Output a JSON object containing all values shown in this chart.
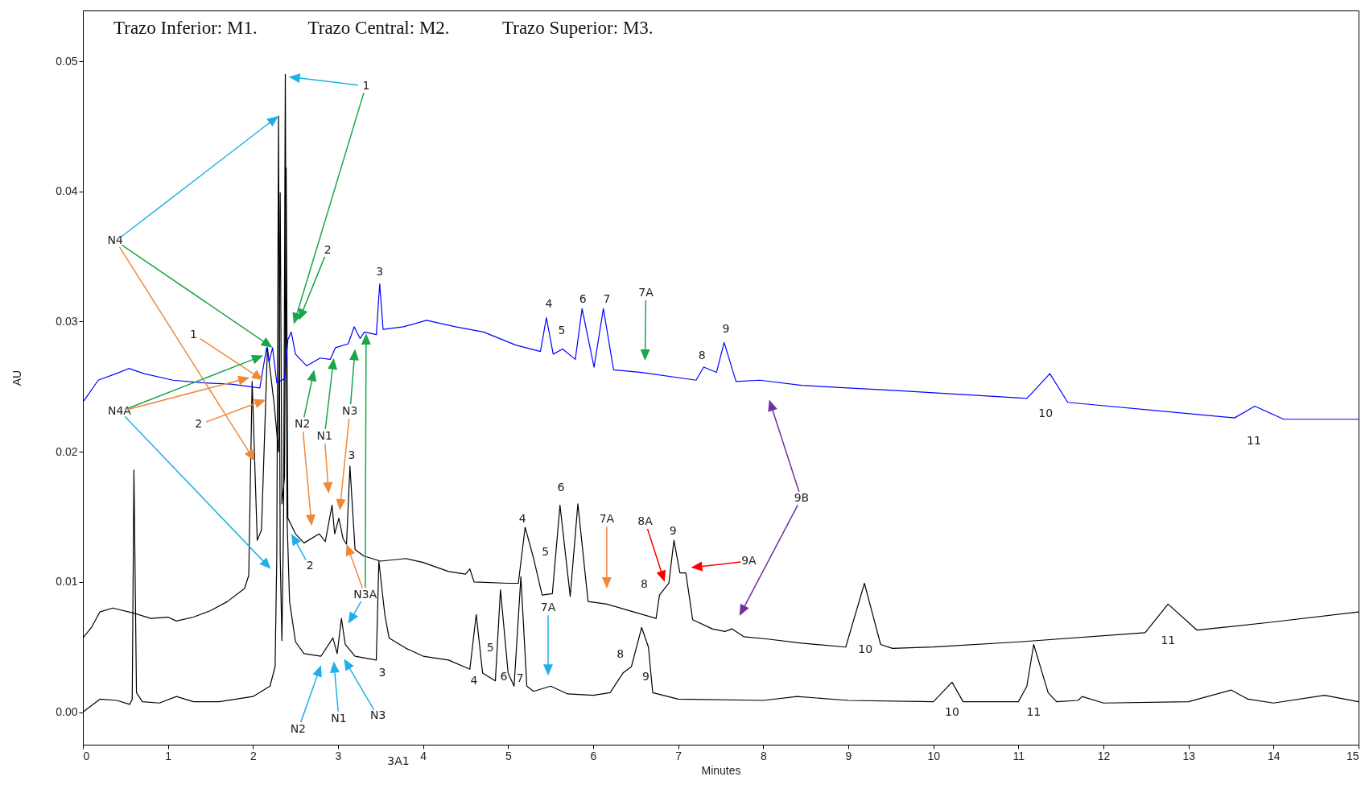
{
  "chart_data": {
    "type": "line",
    "xlabel": "Minutes",
    "ylabel": "AU",
    "xlim": [
      0,
      15
    ],
    "ylim": [
      -0.0025,
      0.0539
    ],
    "xticks": [
      0,
      1,
      2,
      3,
      4,
      5,
      6,
      7,
      8,
      9,
      10,
      11,
      12,
      13,
      14,
      15
    ],
    "yticks": [
      {
        "value": 0,
        "label": "0.00"
      },
      {
        "value": 0.01,
        "label": "0.01"
      },
      {
        "value": 0.02,
        "label": "0.02"
      },
      {
        "value": 0.03,
        "label": "0.03"
      },
      {
        "value": 0.04,
        "label": "0.04"
      },
      {
        "value": 0.05,
        "label": "0.05"
      }
    ],
    "grid": false,
    "series": [
      {
        "color": "#000000",
        "x": [
          0,
          0.1,
          0.2,
          0.4,
          0.55,
          0.58,
          0.6,
          0.63,
          0.7,
          0.9,
          1.1,
          1.3,
          1.6,
          1.8,
          2.0,
          2.2,
          2.26,
          2.28,
          2.3,
          2.32,
          2.34,
          2.36,
          2.38,
          2.4,
          2.43,
          2.5,
          2.6,
          2.8,
          2.94,
          2.99,
          3.04,
          3.085,
          3.2,
          3.45,
          3.48,
          3.55,
          3.6,
          3.8,
          4.0,
          4.3,
          4.55,
          4.625,
          4.7,
          4.85,
          4.91,
          5.0,
          5.07,
          5.15,
          5.22,
          5.3,
          5.5,
          5.7,
          6.0,
          6.2,
          6.35,
          6.45,
          6.57,
          6.65,
          6.7,
          7.0,
          8.0,
          8.4,
          9.0,
          10.0,
          10.22,
          10.35,
          11.0,
          11.1,
          11.18,
          11.35,
          11.45,
          11.7,
          11.75,
          12.0,
          13.0,
          13.5,
          13.7,
          14.0,
          14.6,
          15.0
        ],
        "values": [
          0.0,
          0.0005,
          0.001,
          0.0009,
          0.0006,
          0.001,
          0.0186,
          0.0015,
          0.0008,
          0.0007,
          0.0012,
          0.0008,
          0.0008,
          0.001,
          0.0012,
          0.002,
          0.0035,
          0.012,
          0.0458,
          0.012,
          0.0055,
          0.015,
          0.049,
          0.015,
          0.0085,
          0.0054,
          0.0045,
          0.0043,
          0.0057,
          0.0045,
          0.0072,
          0.0052,
          0.0043,
          0.004,
          0.0116,
          0.0075,
          0.0057,
          0.0049,
          0.0043,
          0.004,
          0.0033,
          0.0075,
          0.003,
          0.0024,
          0.0094,
          0.003,
          0.002,
          0.0104,
          0.002,
          0.0016,
          0.002,
          0.0014,
          0.0013,
          0.0015,
          0.003,
          0.0035,
          0.0065,
          0.005,
          0.0015,
          0.001,
          0.0009,
          0.0012,
          0.0009,
          0.0008,
          0.0023,
          0.0008,
          0.0008,
          0.002,
          0.0052,
          0.0015,
          0.0008,
          0.0009,
          0.0012,
          0.0007,
          0.0008,
          0.0017,
          0.001,
          0.0007,
          0.0013,
          0.0008
        ]
      },
      {
        "color": "#000000",
        "x": [
          0,
          0.1,
          0.2,
          0.35,
          0.6,
          0.8,
          1.0,
          1.1,
          1.3,
          1.5,
          1.7,
          1.9,
          1.95,
          1.99,
          2.05,
          2.1,
          2.17,
          2.25,
          2.3,
          2.32,
          2.34,
          2.37,
          2.39,
          2.41,
          2.5,
          2.6,
          2.78,
          2.85,
          2.93,
          2.96,
          3.01,
          3.06,
          3.1,
          3.14,
          3.2,
          3.3,
          3.5,
          3.8,
          4.0,
          4.3,
          4.5,
          4.55,
          4.6,
          5.0,
          5.12,
          5.2,
          5.3,
          5.4,
          5.52,
          5.61,
          5.73,
          5.82,
          5.94,
          6.16,
          6.42,
          6.74,
          6.78,
          6.89,
          6.95,
          7.02,
          7.09,
          7.17,
          7.4,
          7.55,
          7.63,
          7.77,
          8.07,
          8.45,
          8.97,
          9.19,
          9.38,
          9.52,
          10.0,
          11.01,
          12.49,
          12.76,
          13.1,
          13.96,
          15.0
        ],
        "values": [
          0.0057,
          0.0065,
          0.0077,
          0.008,
          0.0076,
          0.0072,
          0.0073,
          0.007,
          0.0073,
          0.0078,
          0.0085,
          0.0095,
          0.0105,
          0.0254,
          0.0132,
          0.014,
          0.028,
          0.0236,
          0.02,
          0.0399,
          0.016,
          0.018,
          0.0418,
          0.0149,
          0.0137,
          0.013,
          0.0137,
          0.0131,
          0.0159,
          0.0137,
          0.0149,
          0.0133,
          0.0129,
          0.0189,
          0.0125,
          0.012,
          0.0116,
          0.0118,
          0.0115,
          0.0108,
          0.0106,
          0.011,
          0.01,
          0.0099,
          0.0099,
          0.0142,
          0.0118,
          0.009,
          0.0091,
          0.0159,
          0.0089,
          0.016,
          0.0085,
          0.0083,
          0.0078,
          0.0072,
          0.009,
          0.0099,
          0.0132,
          0.0107,
          0.0107,
          0.0071,
          0.0064,
          0.0062,
          0.0064,
          0.0058,
          0.0056,
          0.0053,
          0.005,
          0.0099,
          0.0052,
          0.0049,
          0.005,
          0.0054,
          0.0061,
          0.0083,
          0.0063,
          0.0069,
          0.0077
        ]
      },
      {
        "color": "#0000ff",
        "x": [
          0.01,
          0.18,
          0.39,
          0.54,
          0.72,
          1.06,
          1.4,
          1.74,
          2.08,
          2.16,
          2.19,
          2.23,
          2.28,
          2.37,
          2.41,
          2.45,
          2.5,
          2.63,
          2.79,
          2.91,
          2.97,
          3.12,
          3.19,
          3.26,
          3.31,
          3.45,
          3.49,
          3.53,
          3.77,
          4.04,
          4.38,
          4.71,
          5.09,
          5.38,
          5.45,
          5.53,
          5.64,
          5.79,
          5.87,
          6.01,
          6.12,
          6.24,
          6.57,
          7.21,
          7.3,
          7.45,
          7.54,
          7.68,
          7.96,
          8.45,
          9.57,
          11.1,
          11.37,
          11.58,
          13.54,
          13.78,
          14.12,
          15.0
        ],
        "values": [
          0.0239,
          0.0255,
          0.026,
          0.0264,
          0.026,
          0.0255,
          0.0253,
          0.0252,
          0.0249,
          0.028,
          0.0269,
          0.028,
          0.0253,
          0.0256,
          0.0286,
          0.0292,
          0.0275,
          0.0266,
          0.0272,
          0.0271,
          0.028,
          0.0283,
          0.0296,
          0.0287,
          0.0292,
          0.029,
          0.0329,
          0.0294,
          0.0296,
          0.0301,
          0.0296,
          0.0292,
          0.0282,
          0.0277,
          0.0303,
          0.0275,
          0.0279,
          0.0271,
          0.031,
          0.0265,
          0.031,
          0.0263,
          0.0261,
          0.0255,
          0.0265,
          0.0261,
          0.0284,
          0.0254,
          0.0255,
          0.0251,
          0.0247,
          0.0241,
          0.026,
          0.0238,
          0.0226,
          0.0235,
          0.0225,
          0.0225
        ]
      }
    ],
    "annotations": [
      "Trazo Inferior: M1.",
      "Trazo Central: M2.",
      "Trazo Superior: M3.",
      "1",
      "N4",
      "2",
      "3",
      "1",
      "N4A",
      "2",
      "N2",
      "N1",
      "N3",
      "3",
      "4",
      "5",
      "6",
      "7",
      "7A",
      "8",
      "9",
      "10",
      "11",
      "9B",
      "4",
      "6",
      "5",
      "7A",
      "8A",
      "9",
      "9A",
      "8",
      "2",
      "N3A",
      "10",
      "11",
      "7A",
      "5",
      "4",
      "6",
      "7",
      "8",
      "9",
      "3",
      "N2",
      "N1",
      "N3",
      "10",
      "11",
      "3A1"
    ]
  }
}
